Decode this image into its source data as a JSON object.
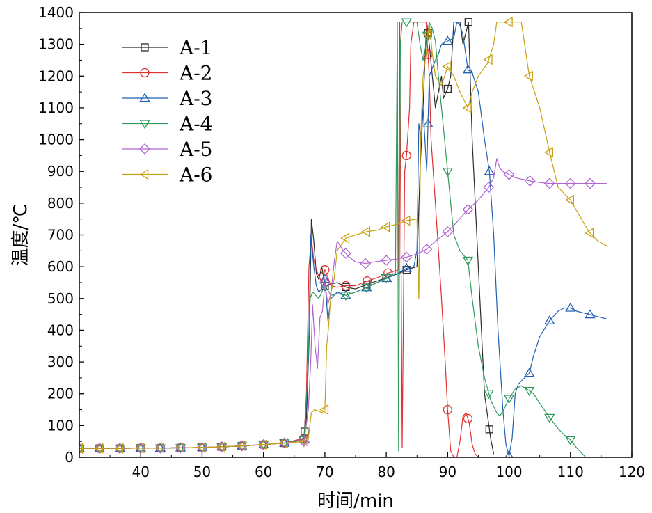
{
  "chart_data": {
    "type": "line",
    "title": "",
    "xlabel": "时间/min",
    "ylabel": "温度/℃",
    "xlim": [
      30,
      120
    ],
    "ylim": [
      0,
      1400
    ],
    "xticks": [
      40,
      50,
      60,
      70,
      80,
      90,
      100,
      110,
      120
    ],
    "yticks": [
      0,
      100,
      200,
      300,
      400,
      500,
      600,
      700,
      800,
      900,
      1000,
      1100,
      1200,
      1300,
      1400
    ],
    "grid": false,
    "legend_position": "top-left",
    "series": [
      {
        "name": "A-1",
        "color": "#2b2b2b",
        "marker": "square",
        "x": [
          30,
          33.3,
          36.6,
          40,
          43.2,
          46.5,
          50,
          53.2,
          56.5,
          60,
          63.4,
          66.5,
          67,
          67.5,
          67.8,
          68.2,
          68.6,
          69,
          69.5,
          70,
          71,
          72,
          73.5,
          75,
          77,
          78.5,
          80,
          82,
          83.3,
          85,
          85.5,
          86,
          86.3,
          86.6,
          87,
          87.5,
          88,
          89,
          89.3,
          90,
          90.5,
          91,
          92,
          92.5,
          93.4,
          94,
          95,
          96,
          97,
          97.5
        ],
        "y": [
          28,
          28,
          28,
          29,
          29,
          30,
          31,
          33,
          36,
          40,
          45,
          55,
          120,
          400,
          750,
          680,
          580,
          560,
          600,
          540,
          545,
          550,
          535,
          530,
          545,
          555,
          565,
          578,
          590,
          600,
          900,
          1100,
          1250,
          1370,
          1300,
          1200,
          1100,
          1200,
          1130,
          1160,
          1200,
          1370,
          1370,
          1300,
          1370,
          1000,
          600,
          200,
          60,
          10
        ],
        "marker_x": [
          30,
          33.3,
          36.6,
          40,
          43.2,
          46.5,
          50,
          53.2,
          56.5,
          60,
          63.4,
          66.7,
          70,
          73.4,
          76.8,
          80,
          83.3,
          86.8,
          90,
          93.4,
          96.8
        ]
      },
      {
        "name": "A-2",
        "color": "#e03030",
        "marker": "circle",
        "x": [
          30,
          33.3,
          36.6,
          40,
          43.2,
          46.5,
          50,
          53.2,
          56.5,
          60,
          63.4,
          66.6,
          67,
          67.4,
          67.8,
          68.2,
          68.8,
          69.5,
          70,
          71,
          72,
          73.4,
          75,
          76.9,
          78.5,
          80.3,
          82,
          82.2,
          82.6,
          83,
          83.3,
          83.8,
          84,
          84.5,
          85.5,
          86,
          86.5,
          87,
          87.3,
          88,
          89,
          89.6,
          90,
          90.5,
          91,
          91.5,
          92,
          92.5,
          93,
          93.5,
          94,
          94.5,
          95
        ],
        "y": [
          28,
          28,
          28,
          29,
          29,
          30,
          31,
          33,
          36,
          40,
          45,
          60,
          200,
          600,
          690,
          620,
          580,
          550,
          590,
          540,
          535,
          540,
          540,
          555,
          565,
          580,
          590,
          1370,
          30,
          900,
          950,
          1100,
          1300,
          1370,
          1370,
          1370,
          1370,
          1200,
          1000,
          800,
          500,
          300,
          150,
          20,
          0,
          0,
          50,
          130,
          140,
          110,
          40,
          10,
          0
        ],
        "marker_x": [
          30,
          33.3,
          36.6,
          40,
          43.2,
          46.5,
          50,
          53.2,
          56.5,
          60,
          63.4,
          66.6,
          70,
          73.4,
          76.9,
          80.3,
          83.3,
          86.8,
          90,
          93.3
        ]
      },
      {
        "name": "A-3",
        "color": "#1f60b4",
        "marker": "triangle-up",
        "x": [
          30,
          33.3,
          36.6,
          40,
          43.2,
          46.5,
          50,
          53.2,
          56.5,
          60,
          63.4,
          66.7,
          67.3,
          67.7,
          68.2,
          68.6,
          69,
          69.5,
          70,
          70.5,
          71,
          72,
          73.4,
          75,
          76.9,
          78.5,
          80.3,
          82,
          83.3,
          84.5,
          85,
          85.3,
          85.7,
          86,
          86.6,
          87,
          88,
          88.5,
          89,
          90,
          91,
          91.5,
          92,
          92.5,
          93.3,
          94,
          95,
          96,
          96.8,
          97.5,
          98.2,
          99,
          99.5,
          100,
          100.5,
          101,
          101.5,
          102,
          103.3,
          104,
          105,
          106.6,
          108,
          109,
          110,
          111,
          112,
          113,
          114,
          115,
          116
        ],
        "y": [
          28,
          28,
          28,
          29,
          29,
          30,
          31,
          33,
          36,
          40,
          45,
          55,
          300,
          700,
          600,
          540,
          520,
          530,
          560,
          430,
          500,
          520,
          510,
          520,
          535,
          550,
          565,
          580,
          595,
          600,
          650,
          1050,
          1000,
          1100,
          900,
          1200,
          1250,
          1270,
          1300,
          1310,
          1320,
          1370,
          1360,
          1330,
          1220,
          1210,
          1150,
          1000,
          900,
          700,
          400,
          150,
          40,
          5,
          60,
          200,
          230,
          240,
          265,
          320,
          380,
          430,
          460,
          470,
          470,
          460,
          455,
          450,
          445,
          440,
          435
        ],
        "marker_x": [
          30,
          33.3,
          36.6,
          40,
          43.2,
          46.5,
          50,
          53.2,
          56.5,
          60,
          63.4,
          66.7,
          70,
          73.4,
          76.8,
          80.1,
          83.3,
          86.8,
          90,
          93.3,
          96.8,
          100,
          103.3,
          106.6,
          110,
          113.2
        ]
      },
      {
        "name": "A-4",
        "color": "#2e9a5c",
        "marker": "triangle-down",
        "x": [
          30,
          33.3,
          36.6,
          40,
          43.2,
          46.5,
          50,
          53.2,
          56.5,
          60,
          63.4,
          66.6,
          67.2,
          67.6,
          68,
          68.5,
          69,
          69.5,
          70,
          71,
          72,
          73.4,
          75,
          76.9,
          78.5,
          80,
          81.5,
          81.8,
          82,
          82.3,
          82.6,
          83.3,
          84,
          85,
          85.5,
          86,
          86.5,
          87,
          87.5,
          88,
          88.5,
          89,
          89.5,
          90,
          90.5,
          91,
          92,
          93.3,
          94,
          95,
          96,
          97,
          98,
          98.5,
          99,
          100,
          101,
          102,
          103.3,
          104,
          105,
          106.6,
          108,
          109,
          110,
          111,
          112.5
        ],
        "y": [
          28,
          28,
          28,
          29,
          29,
          30,
          31,
          33,
          36,
          40,
          45,
          55,
          250,
          500,
          520,
          510,
          500,
          520,
          540,
          510,
          515,
          510,
          520,
          535,
          550,
          565,
          580,
          1370,
          20,
          1300,
          1370,
          1370,
          1370,
          1370,
          1300,
          1250,
          1300,
          1370,
          1350,
          1310,
          1200,
          1100,
          1000,
          900,
          800,
          700,
          650,
          620,
          500,
          350,
          250,
          180,
          140,
          130,
          145,
          185,
          215,
          225,
          210,
          200,
          170,
          125,
          90,
          70,
          55,
          30,
          0
        ],
        "marker_x": [
          30,
          33.3,
          36.6,
          40,
          43.2,
          46.5,
          50,
          53.2,
          56.5,
          60,
          63.4,
          66.6,
          70,
          73.4,
          76.8,
          80,
          83.3,
          86.7,
          90,
          93.3,
          96.7,
          100,
          103.3,
          106.6,
          110
        ]
      },
      {
        "name": "A-5",
        "color": "#b066d0",
        "marker": "diamond",
        "x": [
          30,
          33.3,
          36.6,
          40,
          43.2,
          46.5,
          50,
          53.2,
          56.5,
          60,
          63.4,
          66.6,
          67.3,
          67.7,
          68,
          68.4,
          68.8,
          69.2,
          69.6,
          70,
          70.5,
          71,
          71.5,
          72,
          73,
          74,
          75,
          76.6,
          78,
          80,
          82,
          83.3,
          85,
          86.6,
          88,
          90,
          91.5,
          93.3,
          95,
          96.7,
          97.5,
          98,
          98.5,
          99,
          100,
          101,
          103.4,
          105,
          106.6,
          108,
          110,
          111.5,
          113,
          114.5,
          116
        ],
        "y": [
          28,
          28,
          28,
          29,
          29,
          30,
          31,
          33,
          36,
          40,
          45,
          50,
          150,
          300,
          480,
          350,
          280,
          440,
          460,
          550,
          480,
          520,
          610,
          680,
          650,
          630,
          615,
          610,
          615,
          620,
          625,
          630,
          640,
          655,
          680,
          710,
          740,
          780,
          810,
          850,
          880,
          940,
          910,
          900,
          890,
          880,
          870,
          865,
          862,
          862,
          862,
          862,
          862,
          862,
          862
        ],
        "marker_x": [
          30,
          33.3,
          36.6,
          40,
          43.2,
          46.5,
          50,
          53.2,
          56.5,
          60,
          63.4,
          66.6,
          70,
          73.4,
          76.6,
          80,
          83.3,
          86.6,
          90,
          93.3,
          96.7,
          100,
          103.4,
          106.6,
          110,
          113.2
        ]
      },
      {
        "name": "A-6",
        "color": "#c8a010",
        "marker": "triangle-left",
        "x": [
          30,
          33.3,
          36.6,
          40,
          43.2,
          46.5,
          50,
          53.2,
          56.5,
          60,
          63.4,
          66.7,
          67.3,
          67.8,
          68.3,
          69,
          69.5,
          70,
          70.3,
          70.6,
          71,
          71.5,
          72,
          73.4,
          75,
          76.8,
          78.5,
          80,
          82,
          83.3,
          85,
          85.3,
          85.6,
          86,
          86.5,
          87,
          87.5,
          88,
          89,
          90,
          91,
          92,
          93.3,
          94,
          95,
          96.5,
          97.5,
          98,
          99,
          100,
          101,
          102,
          103.3,
          105,
          106.6,
          108,
          110,
          111.5,
          113,
          114.5,
          116
        ],
        "y": [
          28,
          28,
          28,
          29,
          29,
          30,
          31,
          33,
          36,
          40,
          45,
          50,
          60,
          140,
          150,
          145,
          140,
          150,
          350,
          410,
          520,
          560,
          650,
          690,
          700,
          710,
          715,
          725,
          735,
          745,
          750,
          500,
          1000,
          1200,
          1270,
          1370,
          1270,
          1200,
          1170,
          1230,
          1200,
          1150,
          1100,
          1150,
          1200,
          1240,
          1300,
          1370,
          1370,
          1370,
          1370,
          1370,
          1200,
          1100,
          960,
          850,
          810,
          760,
          710,
          680,
          665
        ],
        "marker_x": [
          30,
          33.3,
          36.6,
          40,
          43.2,
          46.5,
          50,
          53.2,
          56.5,
          60,
          63.4,
          66.7,
          70,
          73.4,
          76.8,
          80,
          83.3,
          86.8,
          90,
          93.3,
          96.7,
          100,
          103.3,
          106.6,
          110,
          113.2
        ]
      }
    ]
  }
}
